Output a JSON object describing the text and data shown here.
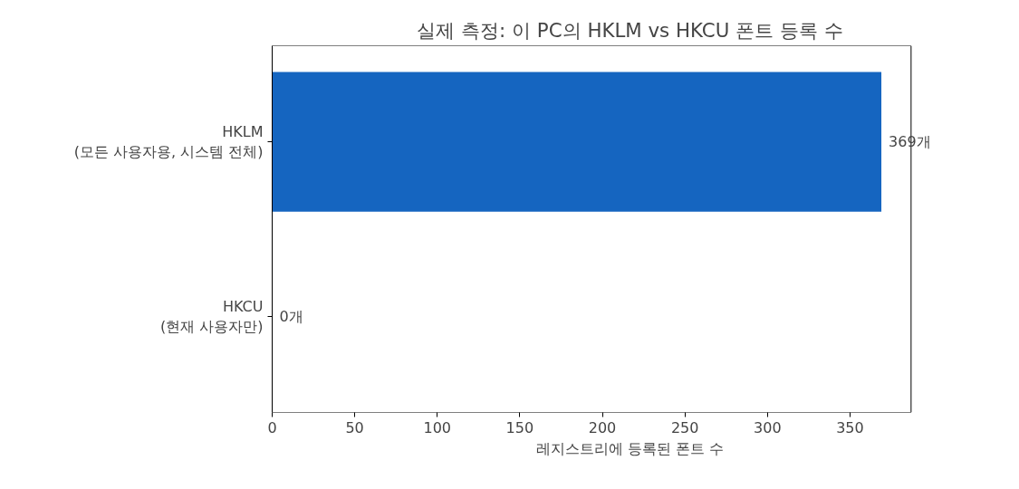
{
  "chart_data": {
    "type": "bar",
    "orientation": "horizontal",
    "title": "실제 측정: 이 PC의 HKLM vs HKCU 폰트 등록 수",
    "xlabel": "레지스트리에 등록된 폰트 수",
    "categories": [
      "HKLM\n(모든 사용자용, 시스템 전체)",
      "HKCU\n(현재 사용자만)"
    ],
    "values": [
      369,
      0
    ],
    "color": "#1565c0",
    "value_labels": [
      "369개",
      "0개"
    ],
    "xlim": [
      0,
      387
    ],
    "xticks": [
      0,
      50,
      100,
      150,
      200,
      250,
      300,
      350
    ],
    "grid": false
  }
}
